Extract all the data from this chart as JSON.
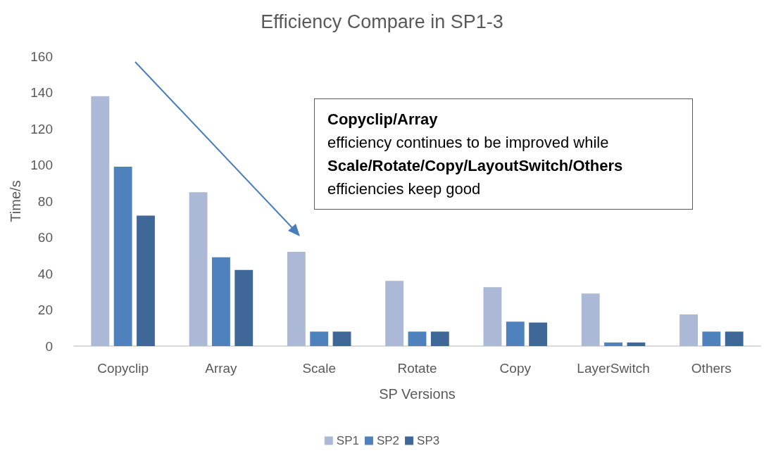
{
  "chart_data": {
    "type": "bar",
    "title": "Efficiency Compare in SP1-3",
    "xlabel": "SP Versions",
    "ylabel": "Time/s",
    "categories": [
      "Copyclip",
      "Array",
      "Scale",
      "Rotate",
      "Copy",
      "LayerSwitch",
      "Others"
    ],
    "series": [
      {
        "name": "SP1",
        "color": "#abb9d6",
        "values": [
          138,
          85,
          52,
          36,
          32.5,
          29,
          17.5
        ]
      },
      {
        "name": "SP2",
        "color": "#4f81bd",
        "values": [
          99,
          49,
          8,
          8,
          13.5,
          2,
          8
        ]
      },
      {
        "name": "SP3",
        "color": "#3f6899",
        "values": [
          72,
          42,
          8,
          8,
          13,
          2,
          8
        ]
      }
    ],
    "ylim": [
      0,
      160
    ],
    "yticks": [
      0,
      20,
      40,
      60,
      80,
      100,
      120,
      140,
      160
    ],
    "grid": false,
    "legend": "bottom",
    "annotations": [
      "Copyclip/Array",
      "efficiency continues to be improved while",
      "Scale/Rotate/Copy/LayoutSwitch/Others",
      "efficiencies keep good"
    ]
  }
}
